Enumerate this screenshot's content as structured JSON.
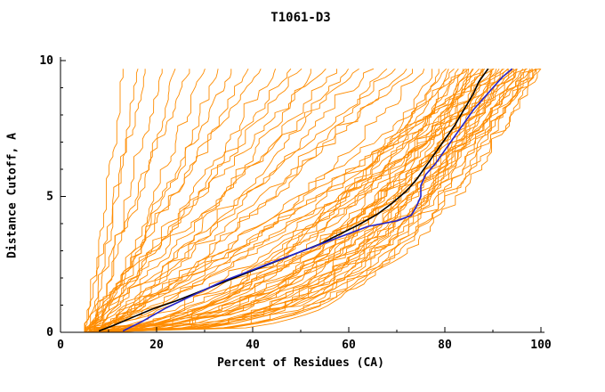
{
  "chart_data": {
    "type": "line",
    "title": "T1061-D3",
    "xlabel": "Percent of Residues (CA)",
    "ylabel": "Distance Cutoff, A",
    "xlim": [
      0,
      100
    ],
    "ylim": [
      0,
      10
    ],
    "x_ticks": [
      0,
      20,
      40,
      60,
      80,
      100
    ],
    "x_minor_step": 10,
    "y_ticks": [
      0,
      5,
      10
    ],
    "y_minor_step": 1,
    "grid": false,
    "legend": "none",
    "y_max_curve": 9.7,
    "colors": {
      "ensemble": "#ff8c00",
      "highlight1": "#000000",
      "highlight2": "#2222cc",
      "axis": "#000000"
    },
    "highlighted_series": [
      {
        "name": "model-black",
        "color": "#000000",
        "points": [
          [
            8,
            0.05
          ],
          [
            11,
            0.25
          ],
          [
            15,
            0.55
          ],
          [
            19,
            0.85
          ],
          [
            24,
            1.15
          ],
          [
            29,
            1.5
          ],
          [
            34,
            1.85
          ],
          [
            39,
            2.2
          ],
          [
            44,
            2.55
          ],
          [
            49,
            2.9
          ],
          [
            54,
            3.25
          ],
          [
            58,
            3.6
          ],
          [
            62,
            3.95
          ],
          [
            66,
            4.35
          ],
          [
            69,
            4.75
          ],
          [
            72,
            5.2
          ],
          [
            74,
            5.6
          ],
          [
            76,
            6.1
          ],
          [
            78,
            6.6
          ],
          [
            80,
            7.1
          ],
          [
            82,
            7.6
          ],
          [
            84,
            8.2
          ],
          [
            86,
            8.8
          ],
          [
            87,
            9.2
          ],
          [
            89,
            9.7
          ]
        ]
      },
      {
        "name": "model-blue",
        "color": "#2222cc",
        "points": [
          [
            13,
            0.05
          ],
          [
            17,
            0.4
          ],
          [
            22,
            0.9
          ],
          [
            28,
            1.4
          ],
          [
            34,
            1.9
          ],
          [
            40,
            2.3
          ],
          [
            46,
            2.7
          ],
          [
            52,
            3.1
          ],
          [
            58,
            3.5
          ],
          [
            64,
            3.9
          ],
          [
            70,
            4.1
          ],
          [
            73,
            4.3
          ],
          [
            74,
            4.6
          ],
          [
            75,
            5.0
          ],
          [
            75,
            5.4
          ],
          [
            76,
            5.8
          ],
          [
            78,
            6.2
          ],
          [
            80,
            6.7
          ],
          [
            82,
            7.2
          ],
          [
            84,
            7.7
          ],
          [
            86,
            8.2
          ],
          [
            88,
            8.6
          ],
          [
            90,
            9.0
          ],
          [
            92,
            9.4
          ],
          [
            94,
            9.7
          ]
        ]
      }
    ],
    "ensemble_series": {
      "name": "server-models",
      "color": "#ff8c00",
      "count": 73,
      "curves": [
        {
          "x0": 5,
          "x1": 13,
          "p": 1.05,
          "s": 1
        },
        {
          "x0": 6,
          "x1": 16,
          "p": 0.95,
          "s": 2
        },
        {
          "x0": 5,
          "x1": 18,
          "p": 1.1,
          "s": 3
        },
        {
          "x0": 7,
          "x1": 21,
          "p": 1.0,
          "s": 4
        },
        {
          "x0": 6,
          "x1": 24,
          "p": 0.9,
          "s": 5
        },
        {
          "x0": 5,
          "x1": 27,
          "p": 1.15,
          "s": 6
        },
        {
          "x0": 8,
          "x1": 30,
          "p": 1.0,
          "s": 7
        },
        {
          "x0": 6,
          "x1": 33,
          "p": 0.85,
          "s": 8
        },
        {
          "x0": 7,
          "x1": 36,
          "p": 1.05,
          "s": 9
        },
        {
          "x0": 5,
          "x1": 39,
          "p": 0.95,
          "s": 10
        },
        {
          "x0": 6,
          "x1": 42,
          "p": 1.1,
          "s": 11
        },
        {
          "x0": 8,
          "x1": 45,
          "p": 1.0,
          "s": 12
        },
        {
          "x0": 5,
          "x1": 48,
          "p": 0.9,
          "s": 13
        },
        {
          "x0": 6,
          "x1": 50,
          "p": 1.0,
          "s": 14
        },
        {
          "x0": 7,
          "x1": 53,
          "p": 0.8,
          "s": 15
        },
        {
          "x0": 5,
          "x1": 55,
          "p": 1.1,
          "s": 16
        },
        {
          "x0": 6,
          "x1": 58,
          "p": 0.95,
          "s": 17
        },
        {
          "x0": 8,
          "x1": 60,
          "p": 0.85,
          "s": 18
        },
        {
          "x0": 5,
          "x1": 62,
          "p": 1.05,
          "s": 19
        },
        {
          "x0": 7,
          "x1": 65,
          "p": 0.9,
          "s": 20
        },
        {
          "x0": 6,
          "x1": 68,
          "p": 0.75,
          "s": 21
        },
        {
          "x0": 5,
          "x1": 70,
          "p": 1.0,
          "s": 22
        },
        {
          "x0": 8,
          "x1": 72,
          "p": 0.85,
          "s": 23
        },
        {
          "x0": 6,
          "x1": 74,
          "p": 0.95,
          "s": 24
        },
        {
          "x0": 7,
          "x1": 76,
          "p": 0.7,
          "s": 25
        },
        {
          "x0": 5,
          "x1": 78,
          "p": 0.45,
          "s": 26
        },
        {
          "x0": 6,
          "x1": 79,
          "p": 0.35,
          "s": 27
        },
        {
          "x0": 7,
          "x1": 80,
          "p": 0.5,
          "s": 28
        },
        {
          "x0": 5,
          "x1": 81,
          "p": 0.3,
          "s": 29
        },
        {
          "x0": 6,
          "x1": 82,
          "p": 0.55,
          "s": 30
        },
        {
          "x0": 8,
          "x1": 83,
          "p": 0.4,
          "s": 31
        },
        {
          "x0": 5,
          "x1": 84,
          "p": 0.28,
          "s": 32
        },
        {
          "x0": 7,
          "x1": 84,
          "p": 0.5,
          "s": 33
        },
        {
          "x0": 6,
          "x1": 85,
          "p": 0.38,
          "s": 34
        },
        {
          "x0": 5,
          "x1": 86,
          "p": 0.6,
          "s": 35
        },
        {
          "x0": 8,
          "x1": 86,
          "p": 0.32,
          "s": 36
        },
        {
          "x0": 6,
          "x1": 87,
          "p": 0.45,
          "s": 37
        },
        {
          "x0": 7,
          "x1": 88,
          "p": 0.3,
          "s": 38
        },
        {
          "x0": 5,
          "x1": 88,
          "p": 0.55,
          "s": 39
        },
        {
          "x0": 6,
          "x1": 89,
          "p": 0.4,
          "s": 40
        },
        {
          "x0": 8,
          "x1": 90,
          "p": 0.28,
          "s": 41
        },
        {
          "x0": 5,
          "x1": 90,
          "p": 0.5,
          "s": 42
        },
        {
          "x0": 7,
          "x1": 91,
          "p": 0.36,
          "s": 43
        },
        {
          "x0": 6,
          "x1": 91,
          "p": 0.6,
          "s": 44
        },
        {
          "x0": 5,
          "x1": 92,
          "p": 0.3,
          "s": 45
        },
        {
          "x0": 8,
          "x1": 92,
          "p": 0.48,
          "s": 46
        },
        {
          "x0": 6,
          "x1": 93,
          "p": 0.34,
          "s": 47
        },
        {
          "x0": 7,
          "x1": 93,
          "p": 0.55,
          "s": 48
        },
        {
          "x0": 5,
          "x1": 94,
          "p": 0.4,
          "s": 49
        },
        {
          "x0": 6,
          "x1": 94,
          "p": 0.27,
          "s": 50
        },
        {
          "x0": 8,
          "x1": 95,
          "p": 0.5,
          "s": 51
        },
        {
          "x0": 5,
          "x1": 95,
          "p": 0.33,
          "s": 52
        },
        {
          "x0": 7,
          "x1": 96,
          "p": 0.58,
          "s": 53
        },
        {
          "x0": 6,
          "x1": 96,
          "p": 0.38,
          "s": 54
        },
        {
          "x0": 5,
          "x1": 97,
          "p": 0.45,
          "s": 55
        },
        {
          "x0": 8,
          "x1": 97,
          "p": 0.3,
          "s": 56
        },
        {
          "x0": 6,
          "x1": 98,
          "p": 0.52,
          "s": 57
        },
        {
          "x0": 7,
          "x1": 98,
          "p": 0.36,
          "s": 58
        },
        {
          "x0": 5,
          "x1": 99,
          "p": 0.42,
          "s": 59
        },
        {
          "x0": 6,
          "x1": 99,
          "p": 0.29,
          "s": 60
        },
        {
          "x0": 8,
          "x1": 100,
          "p": 0.5,
          "s": 61
        },
        {
          "x0": 5,
          "x1": 100,
          "p": 0.34,
          "s": 62
        },
        {
          "x0": 7,
          "x1": 100,
          "p": 0.6,
          "s": 63
        },
        {
          "x0": 6,
          "x1": 85,
          "p": 0.25,
          "s": 64
        },
        {
          "x0": 5,
          "x1": 88,
          "p": 0.22,
          "s": 65
        },
        {
          "x0": 6,
          "x1": 85,
          "p": 0.9,
          "s": 66
        },
        {
          "x0": 5,
          "x1": 90,
          "p": 0.85,
          "s": 67
        },
        {
          "x0": 7,
          "x1": 95,
          "p": 0.95,
          "s": 68
        },
        {
          "x0": 6,
          "x1": 100,
          "p": 0.9,
          "s": 69
        },
        {
          "x0": 5,
          "x1": 97,
          "p": 0.8,
          "s": 70
        },
        {
          "x0": 8,
          "x1": 92,
          "p": 1.0,
          "s": 71
        },
        {
          "x0": 6,
          "x1": 88,
          "p": 0.75,
          "s": 72
        },
        {
          "x0": 5,
          "x1": 94,
          "p": 0.7,
          "s": 73
        }
      ]
    }
  }
}
